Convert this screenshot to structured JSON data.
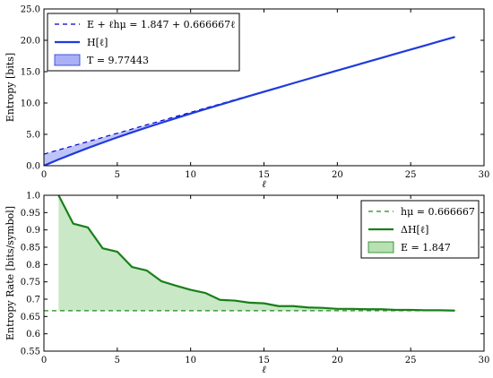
{
  "chart_data": [
    {
      "type": "line",
      "title": "",
      "xlabel": "ℓ",
      "ylabel": "Entropy [bits]",
      "xlim": [
        0,
        30
      ],
      "ylim": [
        0,
        25
      ],
      "xticks": [
        "0",
        "5",
        "10",
        "15",
        "20",
        "25",
        "30"
      ],
      "yticks": [
        "0.0",
        "5.0",
        "10.0",
        "15.0",
        "20.0",
        "25.0"
      ],
      "grid": false,
      "legend_placement": "top-left",
      "series": [
        {
          "name": "E + ℓhμ = 1.847 + 0.666667ℓ",
          "style": "dashed",
          "color": "#0000cc",
          "x": [
            0,
            28
          ],
          "y": [
            1.847,
            20.514
          ]
        },
        {
          "name": "H[ℓ]",
          "style": "solid",
          "color": "#1f3bdb",
          "x": [
            0,
            1,
            2,
            3,
            4,
            5,
            6,
            7,
            8,
            9,
            10,
            11,
            12,
            13,
            14,
            15,
            16,
            17,
            18,
            19,
            20,
            21,
            22,
            23,
            24,
            25,
            26,
            27,
            28
          ],
          "y": [
            0,
            1.0,
            1.92,
            2.83,
            3.68,
            4.52,
            5.31,
            6.09,
            6.84,
            7.58,
            8.31,
            9.02,
            9.72,
            10.42,
            11.11,
            11.8,
            12.48,
            13.16,
            13.84,
            14.51,
            15.18,
            15.85,
            16.52,
            17.19,
            17.86,
            18.52,
            19.19,
            19.86,
            20.52
          ]
        },
        {
          "name": "T = 9.77443",
          "style": "fill",
          "color": "#aab0f5"
        }
      ]
    },
    {
      "type": "line",
      "title": "",
      "xlabel": "ℓ",
      "ylabel": "Entropy Rate [bits/symbol]",
      "xlim": [
        0,
        30
      ],
      "ylim": [
        0.55,
        1.0
      ],
      "xticks": [
        "0",
        "5",
        "10",
        "15",
        "20",
        "25",
        "30"
      ],
      "yticks": [
        "0.55",
        "0.6",
        "0.65",
        "0.7",
        "0.75",
        "0.8",
        "0.85",
        "0.9",
        "0.95",
        "1.0"
      ],
      "grid": false,
      "legend_placement": "top-right",
      "series": [
        {
          "name": "hμ = 0.666667",
          "style": "dashed",
          "color": "#1f8a1f",
          "x": [
            0,
            28
          ],
          "y": [
            0.666667,
            0.666667
          ]
        },
        {
          "name": "ΔH[ℓ]",
          "style": "solid",
          "color": "#1a7f1a",
          "x": [
            1,
            2,
            3,
            4,
            5,
            6,
            7,
            8,
            9,
            10,
            11,
            12,
            13,
            14,
            15,
            16,
            17,
            18,
            19,
            20,
            21,
            22,
            23,
            24,
            25,
            26,
            27,
            28
          ],
          "y": [
            1.0,
            0.918,
            0.907,
            0.847,
            0.837,
            0.793,
            0.783,
            0.752,
            0.739,
            0.727,
            0.718,
            0.698,
            0.696,
            0.69,
            0.688,
            0.68,
            0.68,
            0.676,
            0.675,
            0.672,
            0.672,
            0.671,
            0.671,
            0.669,
            0.669,
            0.668,
            0.668,
            0.667
          ]
        },
        {
          "name": "E = 1.847",
          "style": "fill",
          "color": "#b7e0b3"
        }
      ]
    }
  ]
}
